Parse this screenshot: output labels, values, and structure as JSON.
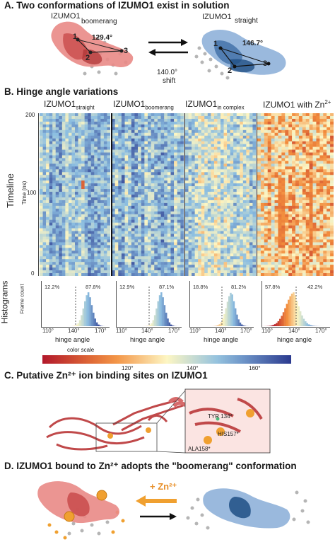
{
  "panelA": {
    "title": "A. Two conformations of IZUMO1 exist in solution",
    "left_label": "IZUMO1",
    "left_sub": "boomerang",
    "left_angle": "129.4°",
    "right_label": "IZUMO1",
    "right_sub": "straight",
    "right_angle": "146.7°",
    "shift": "140.0°",
    "shift_word": "shift",
    "points": [
      "1",
      "2",
      "3"
    ]
  },
  "panelB": {
    "title": "B. Hinge angle variations",
    "columns": [
      {
        "name": "IZUMO1",
        "sub": "straight",
        "sup": "",
        "low_pct": "12.2%",
        "high_pct": "87.8%"
      },
      {
        "name": "IZUMO1",
        "sub": "boomerang",
        "sup": "",
        "low_pct": "12.9%",
        "high_pct": "87.1%"
      },
      {
        "name": "IZUMO1",
        "sub": "in complex",
        "sup": "",
        "low_pct": "18.8%",
        "high_pct": "81.2%"
      },
      {
        "name": "IZUMO1",
        "sub": " with Zn",
        "sup": "2+",
        "low_pct": "57.8%",
        "high_pct": "42.2%"
      }
    ],
    "timeline_label": "Timeline",
    "time_unit": "Time (ns)",
    "time_ticks": [
      "200",
      "100",
      "0"
    ],
    "histograms_label": "Histograms",
    "frame_count": "Frame count",
    "hist_ticks": [
      "110°",
      "140°",
      "170°"
    ],
    "hist_axis": "hinge angle",
    "color_scale_label": "color scale",
    "color_ticks": [
      "120°",
      "140°",
      "160°"
    ],
    "colors": {
      "low": "#b2182b",
      "mid": "#fdf6c3",
      "high": "#2b3a8f"
    }
  },
  "panelC": {
    "title": "C. Putative Zn²⁺ ion binding sites on IZUMO1",
    "residues": [
      "TYR 134*",
      "HIS157*",
      "ALA158*"
    ]
  },
  "panelD": {
    "title": "D. IZUMO1 bound to Zn²⁺ adopts the \"boomerang\" conformation",
    "arrow_label": "+ Zn²⁺"
  }
}
